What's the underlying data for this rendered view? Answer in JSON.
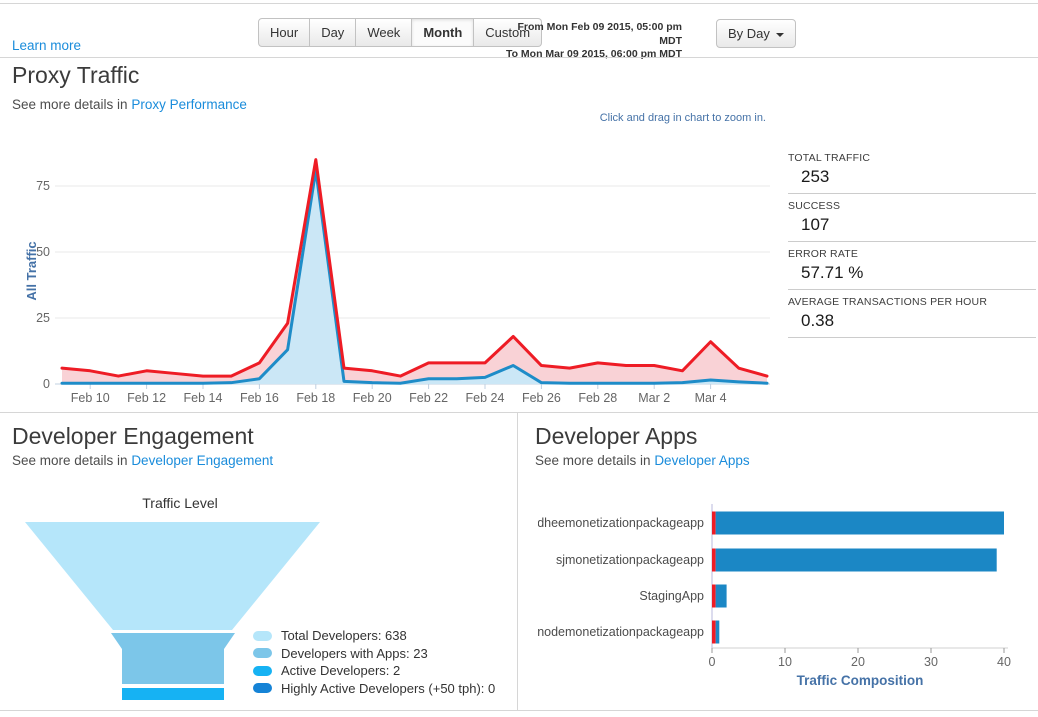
{
  "header": {
    "learn_more": "Learn more",
    "range_buttons": [
      "Hour",
      "Day",
      "Week",
      "Month",
      "Custom"
    ],
    "active_range": "Month",
    "date_from": "From Mon Feb 09 2015, 05:00 pm MDT",
    "date_to": "To Mon Mar 09 2015, 06:00 pm MDT",
    "group_by_label": "By Day"
  },
  "proxy_traffic": {
    "title": "Proxy Traffic",
    "subtitle_prefix": "See more details in ",
    "subtitle_link": "Proxy Performance",
    "zoom_hint": "Click and drag in chart to zoom in.",
    "stats": [
      {
        "label": "TOTAL TRAFFIC",
        "value": "253"
      },
      {
        "label": "SUCCESS",
        "value": "107"
      },
      {
        "label": "ERROR RATE",
        "value": "57.71 %"
      },
      {
        "label": "AVERAGE TRANSACTIONS PER HOUR",
        "value": "0.38"
      }
    ]
  },
  "developer_engagement": {
    "title": "Developer Engagement",
    "subtitle_prefix": "See more details in ",
    "subtitle_link": "Developer Engagement"
  },
  "developer_apps": {
    "title": "Developer Apps",
    "subtitle_prefix": "See more details in ",
    "subtitle_link": "Developer Apps"
  },
  "chart_data": [
    {
      "type": "area",
      "ylabel": "All Traffic",
      "ylim": [
        0,
        90
      ],
      "grid": true,
      "yticks": [
        0,
        25,
        50,
        75
      ],
      "xticks": [
        "Feb 10",
        "Feb 12",
        "Feb 14",
        "Feb 16",
        "Feb 18",
        "Feb 20",
        "Feb 22",
        "Feb 24",
        "Feb 26",
        "Feb 28",
        "Mar 2",
        "Mar 4"
      ],
      "x": [
        "Feb 9",
        "Feb 10",
        "Feb 11",
        "Feb 12",
        "Feb 13",
        "Feb 14",
        "Feb 15",
        "Feb 16",
        "Feb 17",
        "Feb 18",
        "Feb 19",
        "Feb 20",
        "Feb 21",
        "Feb 22",
        "Feb 23",
        "Feb 24",
        "Feb 25",
        "Feb 26",
        "Feb 27",
        "Feb 28",
        "Mar 1",
        "Mar 2",
        "Mar 3",
        "Mar 4",
        "Mar 5",
        "Mar 6"
      ],
      "series": [
        {
          "name": "All Traffic",
          "color": "#ee1c25",
          "fill": "#f9d2d6",
          "values": [
            6,
            5,
            3,
            5,
            4,
            3,
            3,
            8,
            23,
            85,
            6,
            5,
            3,
            8,
            8,
            8,
            18,
            7,
            6,
            8,
            7,
            7,
            5,
            16,
            6,
            3
          ]
        },
        {
          "name": "Success",
          "color": "#1e8cc8",
          "fill": "#cbe7f6",
          "values": [
            0.3,
            0.3,
            0.3,
            0.3,
            0.3,
            0.3,
            0.5,
            2,
            13,
            81,
            1,
            0.5,
            0.3,
            2,
            2,
            2.5,
            7,
            0.5,
            0.3,
            0.3,
            0.3,
            0.3,
            0.5,
            1.5,
            0.8,
            0.3
          ]
        }
      ]
    },
    {
      "type": "funnel",
      "title": "Traffic Level",
      "stages": [
        {
          "label": "Total Developers",
          "value": 638,
          "color": "#b5e6fa"
        },
        {
          "label": "Developers with Apps",
          "value": 23,
          "color": "#7cc6e9"
        },
        {
          "label": "Active Developers",
          "value": 2,
          "color": "#16b2f3"
        },
        {
          "label": "Highly Active Developers (+50 tph)",
          "value": 0,
          "color": "#1583d6"
        }
      ]
    },
    {
      "type": "bar",
      "orientation": "horizontal",
      "categories": [
        "sudheemonetizationpackageapp",
        "sjmonetizationpackageapp",
        "StagingApp",
        "nodemonetizationpackageapp"
      ],
      "series": [
        {
          "name": "Errors",
          "color": "#ee1c25",
          "values": [
            0.5,
            0.5,
            0.5,
            0.5
          ]
        },
        {
          "name": "Success",
          "color": "#1b87c5",
          "values": [
            39.5,
            38.5,
            1.5,
            0.5
          ]
        }
      ],
      "xticks": [
        0,
        10,
        20,
        30,
        40
      ],
      "xlim": [
        0,
        42
      ],
      "xlabel": "Traffic Composition"
    }
  ]
}
